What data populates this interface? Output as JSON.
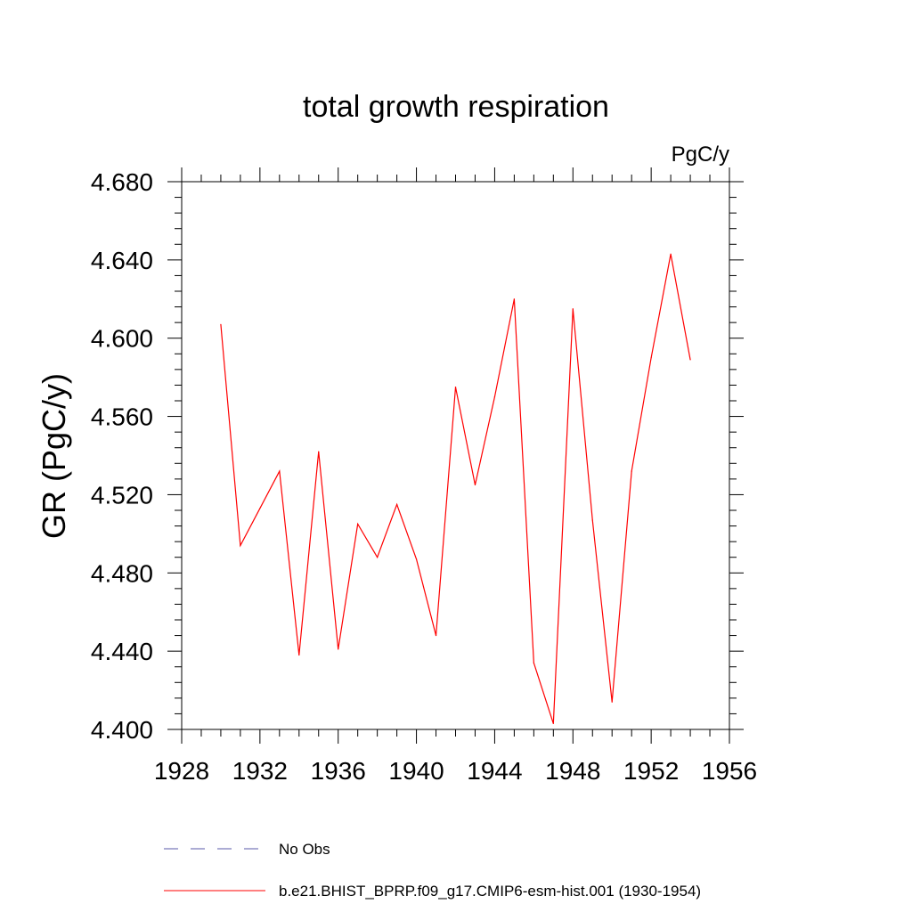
{
  "chart_data": {
    "type": "line",
    "title": "total growth respiration",
    "units_label": "PgC/y",
    "xlabel": "",
    "ylabel": "GR  (PgC/y)",
    "xlim": [
      1928,
      1956
    ],
    "ylim": [
      4.4,
      4.68
    ],
    "x_ticks": [
      1928,
      1932,
      1936,
      1940,
      1944,
      1948,
      1952,
      1956
    ],
    "x_tick_labels": [
      "1928",
      "1932",
      "1936",
      "1940",
      "1944",
      "1948",
      "1952",
      "1956"
    ],
    "y_ticks": [
      4.4,
      4.44,
      4.48,
      4.52,
      4.56,
      4.6,
      4.64,
      4.68
    ],
    "y_tick_labels": [
      "4.400",
      "4.440",
      "4.480",
      "4.520",
      "4.560",
      "4.600",
      "4.640",
      "4.680"
    ],
    "x_minor_step": 1,
    "y_minor_step": 0.008,
    "grid": false,
    "series": [
      {
        "name": "No Obs",
        "color": "#5a5aa8",
        "style": "dashed",
        "x": [],
        "values": []
      },
      {
        "name": "b.e21.BHIST_BPRP.f09_g17.CMIP6-esm-hist.001 (1930-1954)",
        "color": "#ff0000",
        "style": "solid",
        "x": [
          1930,
          1931,
          1932,
          1933,
          1934,
          1935,
          1936,
          1937,
          1938,
          1939,
          1940,
          1941,
          1942,
          1943,
          1944,
          1945,
          1946,
          1947,
          1948,
          1949,
          1950,
          1951,
          1952,
          1953,
          1954
        ],
        "values": [
          4.607,
          4.494,
          4.513,
          4.532,
          4.438,
          4.542,
          4.441,
          4.505,
          4.488,
          4.515,
          4.487,
          4.448,
          4.575,
          4.525,
          4.57,
          4.62,
          4.434,
          4.403,
          4.615,
          4.507,
          4.414,
          4.532,
          4.59,
          4.643,
          4.589
        ]
      }
    ],
    "legend": {
      "placement": "bottom-left",
      "entries": [
        "No Obs",
        "b.e21.BHIST_BPRP.f09_g17.CMIP6-esm-hist.001 (1930-1954)"
      ]
    }
  }
}
